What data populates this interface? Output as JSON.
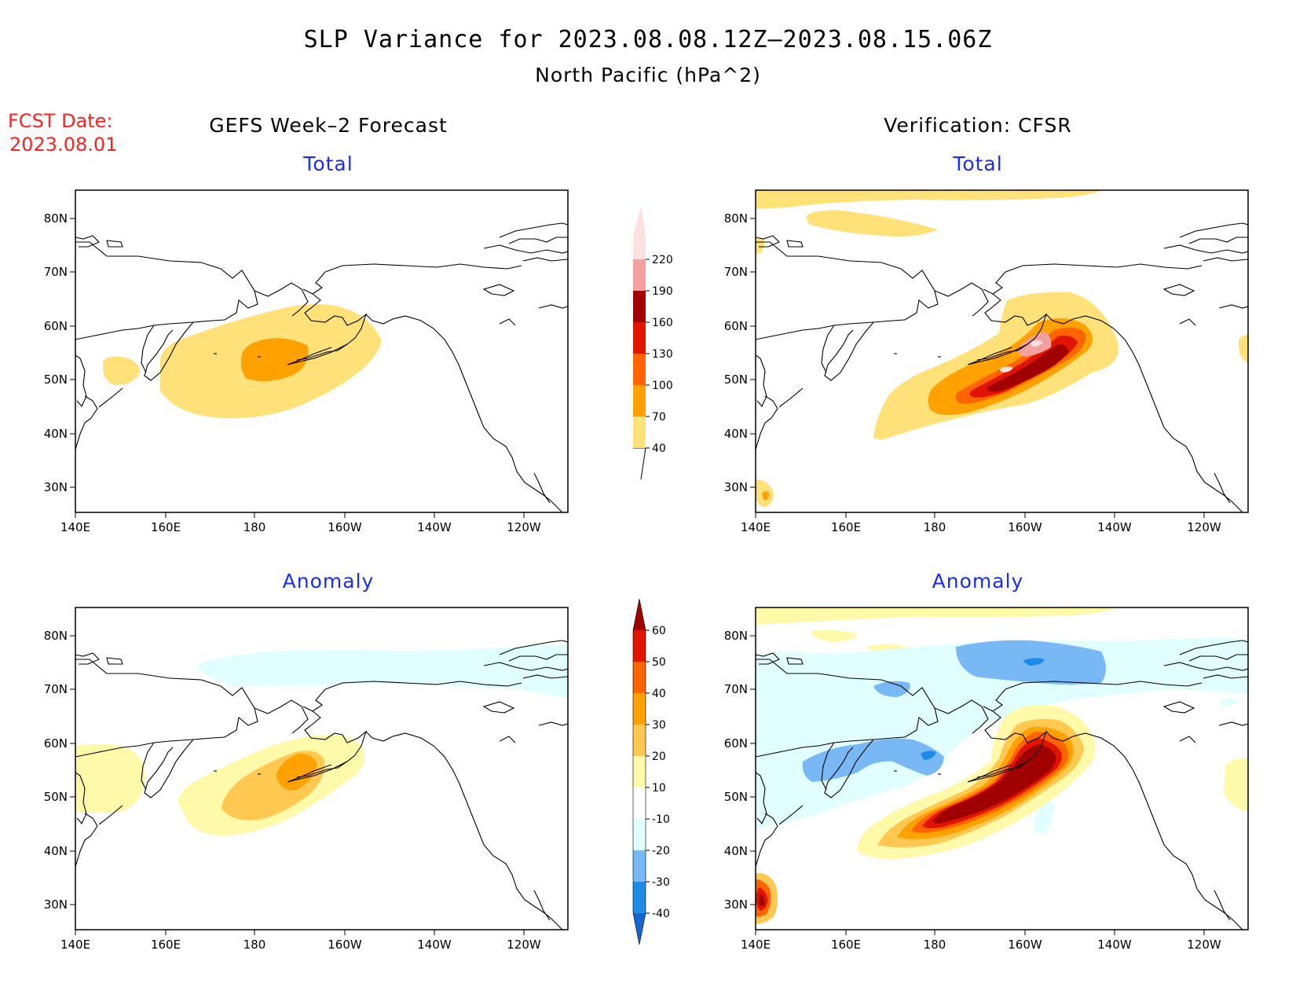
{
  "title": "SLP Variance for 2023.08.08.12Z–2023.08.15.06Z",
  "subtitle": "North Pacific (hPa^2)",
  "fcst": {
    "label": "FCST Date:",
    "date": "2023.08.01"
  },
  "columns": [
    {
      "header": "GEFS Week–2 Forecast"
    },
    {
      "header": "Verification: CFSR"
    }
  ],
  "panels": [
    {
      "label": "Total"
    },
    {
      "label": "Total"
    },
    {
      "label": "Anomaly"
    },
    {
      "label": "Anomaly"
    }
  ],
  "axes": {
    "x_ticks": [
      "140E",
      "160E",
      "180",
      "160W",
      "140W",
      "120W"
    ],
    "y_ticks": [
      "80N",
      "70N",
      "60N",
      "50N",
      "40N",
      "30N"
    ]
  },
  "colorbar_total": {
    "levels": [
      "40",
      "70",
      "100",
      "130",
      "160",
      "190",
      "220"
    ],
    "colors": [
      "#ffe17a",
      "#ffa100",
      "#ff6400",
      "#e11400",
      "#a00000",
      "#f5a0a0",
      "#fde1e1"
    ]
  },
  "colorbar_anomaly": {
    "levels": [
      "-40",
      "-30",
      "-20",
      "-10",
      "10",
      "20",
      "30",
      "40",
      "50",
      "60"
    ],
    "colors": [
      "#1464d2",
      "#1e8ce6",
      "#78b9f5",
      "#e1ffff",
      "#ffffff",
      "#fffaaa",
      "#ffc850",
      "#ffa100",
      "#ff6400",
      "#e11400",
      "#a00000"
    ]
  }
}
